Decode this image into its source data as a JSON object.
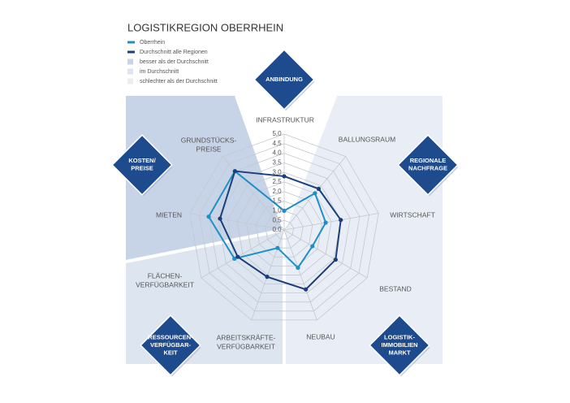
{
  "chart_data": {
    "type": "radar",
    "title": "LOGISTIKREGION OBERRHEIN",
    "categories": [
      [
        "INFRASTRUKTUR"
      ],
      [
        "BALLUNGSRAUM"
      ],
      [
        "WIRTSCHAFT"
      ],
      [
        "BESTAND"
      ],
      [
        "NEUBAU"
      ],
      [
        "ARBEITSKRÄFTE-",
        "VERFÜGBARKEIT"
      ],
      [
        "FLÄCHEN-",
        "VERFÜGBARKEIT"
      ],
      [
        "MIETEN"
      ],
      [
        "GRUNDSTÜCKS-",
        "PREISE"
      ]
    ],
    "series": [
      {
        "name": "Oberrhein",
        "color": "#1e8fc6",
        "values": [
          1.0,
          2.5,
          2.2,
          1.7,
          2.1,
          1.0,
          3.0,
          4.0,
          4.0
        ]
      },
      {
        "name": "Durchschnitt alle Regionen",
        "color": "#1b3f7c",
        "values": [
          2.8,
          2.8,
          3.0,
          3.1,
          3.3,
          2.6,
          2.8,
          3.4,
          4.0
        ]
      }
    ],
    "regions": [
      {
        "name": "besser als der Durchschnitt",
        "color": "#c7d4e8"
      },
      {
        "name": "im Durchschnitt",
        "color": "#dde5f0"
      },
      {
        "name": "schlechter als der Durchschnitt",
        "color": "#e9eef6"
      }
    ],
    "ylim": [
      0,
      5
    ],
    "yticks": [
      {
        "value": 0,
        "label": "0,0"
      },
      {
        "value": 0.5,
        "label": "0,5"
      },
      {
        "value": 1,
        "label": "1,0"
      },
      {
        "value": 1.5,
        "label": "1,5"
      },
      {
        "value": 2,
        "label": "2,0"
      },
      {
        "value": 2.5,
        "label": "2,5"
      },
      {
        "value": 3,
        "label": "3,0"
      },
      {
        "value": 3.5,
        "label": "3,5"
      },
      {
        "value": 4,
        "label": "4,0"
      },
      {
        "value": 4.5,
        "label": "4,5"
      },
      {
        "value": 5,
        "label": "5,0"
      }
    ],
    "annotations": [
      [
        "ANBINDUNG"
      ],
      [
        "KOSTEN/",
        "PREISE"
      ],
      [
        "REGIONALE",
        "NACHFRAGE"
      ],
      [
        "RESSOURCEN-",
        "VERFÜGBAR-",
        "KEIT"
      ],
      [
        "LOGISTIK-",
        "IMMOBILIEN",
        "MARKT"
      ]
    ]
  }
}
